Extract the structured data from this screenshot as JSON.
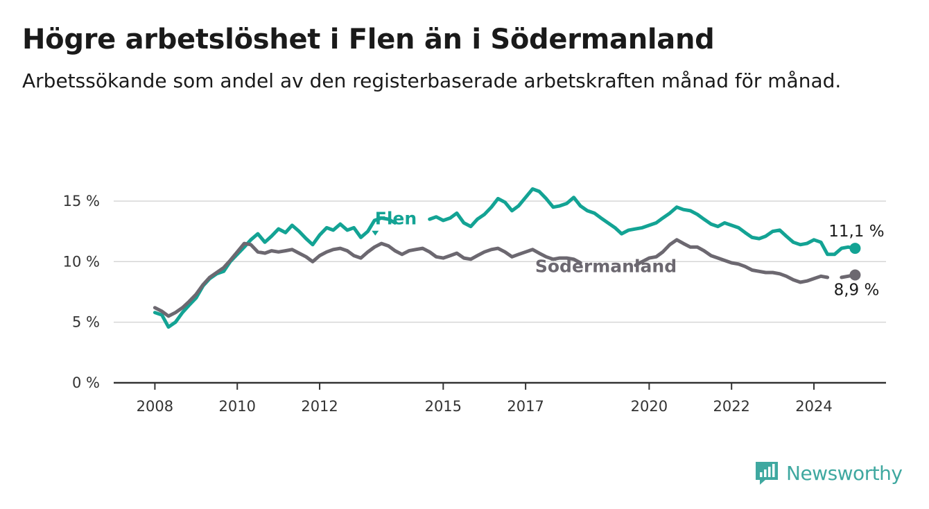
{
  "title": "Högre arbetslöshet i Flen än i Södermanland",
  "subtitle": "Arbetssökande som andel av den registerbaserade arbetskraften månad för månad.",
  "brand": "Newsworthy",
  "chart_data": {
    "type": "line",
    "ylim": [
      0,
      17
    ],
    "yticks": [
      0,
      5,
      10,
      15
    ],
    "ytick_labels": [
      "0 %",
      "5 %",
      "10 %",
      "15 %"
    ],
    "xlim": [
      2007.0,
      2025.75
    ],
    "xticks": [
      2008,
      2010,
      2012,
      2015,
      2017,
      2020,
      2022,
      2024
    ],
    "xtick_labels": [
      "2008",
      "2010",
      "2012",
      "2015",
      "2017",
      "2020",
      "2022",
      "2024"
    ],
    "grid": true,
    "series": [
      {
        "name": "Flen",
        "color": "#13a394",
        "end_label": "11,1 %",
        "points": [
          [
            2008.0,
            5.8
          ],
          [
            2008.17,
            5.6
          ],
          [
            2008.33,
            4.6
          ],
          [
            2008.5,
            5.0
          ],
          [
            2008.67,
            5.8
          ],
          [
            2008.83,
            6.4
          ],
          [
            2009.0,
            7.0
          ],
          [
            2009.17,
            8.0
          ],
          [
            2009.33,
            8.6
          ],
          [
            2009.5,
            9.0
          ],
          [
            2009.67,
            9.2
          ],
          [
            2009.83,
            10.0
          ],
          [
            2010.0,
            10.6
          ],
          [
            2010.17,
            11.2
          ],
          [
            2010.33,
            11.8
          ],
          [
            2010.5,
            12.3
          ],
          [
            2010.67,
            11.6
          ],
          [
            2010.83,
            12.1
          ],
          [
            2011.0,
            12.7
          ],
          [
            2011.17,
            12.4
          ],
          [
            2011.33,
            13.0
          ],
          [
            2011.5,
            12.5
          ],
          [
            2011.67,
            11.9
          ],
          [
            2011.83,
            11.4
          ],
          [
            2012.0,
            12.2
          ],
          [
            2012.17,
            12.8
          ],
          [
            2012.33,
            12.6
          ],
          [
            2012.5,
            13.1
          ],
          [
            2012.67,
            12.6
          ],
          [
            2012.83,
            12.8
          ],
          [
            2013.0,
            12.0
          ],
          [
            2013.17,
            12.5
          ],
          [
            2013.33,
            13.4
          ],
          [
            2013.5,
            13.6
          ],
          [
            2013.67,
            13.5
          ],
          [
            2013.83,
            13.2
          ],
          [
            2014.0,
            null
          ],
          [
            2014.67,
            13.5
          ],
          [
            2014.83,
            13.7
          ],
          [
            2015.0,
            13.4
          ],
          [
            2015.17,
            13.6
          ],
          [
            2015.33,
            14.0
          ],
          [
            2015.5,
            13.2
          ],
          [
            2015.67,
            12.9
          ],
          [
            2015.83,
            13.5
          ],
          [
            2016.0,
            13.9
          ],
          [
            2016.17,
            14.5
          ],
          [
            2016.33,
            15.2
          ],
          [
            2016.5,
            14.9
          ],
          [
            2016.67,
            14.2
          ],
          [
            2016.83,
            14.6
          ],
          [
            2017.0,
            15.3
          ],
          [
            2017.17,
            16.0
          ],
          [
            2017.33,
            15.8
          ],
          [
            2017.5,
            15.2
          ],
          [
            2017.67,
            14.5
          ],
          [
            2017.83,
            14.6
          ],
          [
            2018.0,
            14.8
          ],
          [
            2018.17,
            15.3
          ],
          [
            2018.33,
            14.6
          ],
          [
            2018.5,
            14.2
          ],
          [
            2018.67,
            14.0
          ],
          [
            2018.83,
            13.6
          ],
          [
            2019.0,
            13.2
          ],
          [
            2019.17,
            12.8
          ],
          [
            2019.33,
            12.3
          ],
          [
            2019.5,
            12.6
          ],
          [
            2019.67,
            12.7
          ],
          [
            2019.83,
            12.8
          ],
          [
            2020.0,
            13.0
          ],
          [
            2020.17,
            13.2
          ],
          [
            2020.33,
            13.6
          ],
          [
            2020.5,
            14.0
          ],
          [
            2020.67,
            14.5
          ],
          [
            2020.83,
            14.3
          ],
          [
            2021.0,
            14.2
          ],
          [
            2021.17,
            13.9
          ],
          [
            2021.33,
            13.5
          ],
          [
            2021.5,
            13.1
          ],
          [
            2021.67,
            12.9
          ],
          [
            2021.83,
            13.2
          ],
          [
            2022.0,
            13.0
          ],
          [
            2022.17,
            12.8
          ],
          [
            2022.33,
            12.4
          ],
          [
            2022.5,
            12.0
          ],
          [
            2022.67,
            11.9
          ],
          [
            2022.83,
            12.1
          ],
          [
            2023.0,
            12.5
          ],
          [
            2023.17,
            12.6
          ],
          [
            2023.33,
            12.1
          ],
          [
            2023.5,
            11.6
          ],
          [
            2023.67,
            11.4
          ],
          [
            2023.83,
            11.5
          ],
          [
            2024.0,
            11.8
          ],
          [
            2024.17,
            11.6
          ],
          [
            2024.33,
            10.6
          ],
          [
            2024.5,
            10.6
          ],
          [
            2024.67,
            11.1
          ],
          [
            2024.83,
            11.2
          ],
          [
            2025.0,
            11.1
          ]
        ]
      },
      {
        "name": "Södermanland",
        "color": "#6c6870",
        "end_label": "8,9 %",
        "points": [
          [
            2008.0,
            6.2
          ],
          [
            2008.17,
            5.9
          ],
          [
            2008.33,
            5.5
          ],
          [
            2008.5,
            5.8
          ],
          [
            2008.67,
            6.2
          ],
          [
            2008.83,
            6.7
          ],
          [
            2009.0,
            7.3
          ],
          [
            2009.17,
            8.1
          ],
          [
            2009.33,
            8.7
          ],
          [
            2009.5,
            9.1
          ],
          [
            2009.67,
            9.5
          ],
          [
            2009.83,
            10.1
          ],
          [
            2010.0,
            10.8
          ],
          [
            2010.17,
            11.5
          ],
          [
            2010.33,
            11.4
          ],
          [
            2010.5,
            10.8
          ],
          [
            2010.67,
            10.7
          ],
          [
            2010.83,
            10.9
          ],
          [
            2011.0,
            10.8
          ],
          [
            2011.17,
            10.9
          ],
          [
            2011.33,
            11.0
          ],
          [
            2011.5,
            10.7
          ],
          [
            2011.67,
            10.4
          ],
          [
            2011.83,
            10.0
          ],
          [
            2012.0,
            10.5
          ],
          [
            2012.17,
            10.8
          ],
          [
            2012.33,
            11.0
          ],
          [
            2012.5,
            11.1
          ],
          [
            2012.67,
            10.9
          ],
          [
            2012.83,
            10.5
          ],
          [
            2013.0,
            10.3
          ],
          [
            2013.17,
            10.8
          ],
          [
            2013.33,
            11.2
          ],
          [
            2013.5,
            11.5
          ],
          [
            2013.67,
            11.3
          ],
          [
            2013.83,
            10.9
          ],
          [
            2014.0,
            10.6
          ],
          [
            2014.17,
            10.9
          ],
          [
            2014.33,
            11.0
          ],
          [
            2014.5,
            11.1
          ],
          [
            2014.67,
            10.8
          ],
          [
            2014.83,
            10.4
          ],
          [
            2015.0,
            10.3
          ],
          [
            2015.17,
            10.5
          ],
          [
            2015.33,
            10.7
          ],
          [
            2015.5,
            10.3
          ],
          [
            2015.67,
            10.2
          ],
          [
            2015.83,
            10.5
          ],
          [
            2016.0,
            10.8
          ],
          [
            2016.17,
            11.0
          ],
          [
            2016.33,
            11.1
          ],
          [
            2016.5,
            10.8
          ],
          [
            2016.67,
            10.4
          ],
          [
            2016.83,
            10.6
          ],
          [
            2017.0,
            10.8
          ],
          [
            2017.17,
            11.0
          ],
          [
            2017.33,
            10.7
          ],
          [
            2017.5,
            10.4
          ],
          [
            2017.67,
            10.2
          ],
          [
            2017.83,
            10.3
          ],
          [
            2018.0,
            10.3
          ],
          [
            2018.17,
            10.2
          ],
          [
            2018.33,
            9.9
          ],
          [
            2018.5,
            null
          ],
          [
            2019.67,
            9.7
          ],
          [
            2019.83,
            10.0
          ],
          [
            2020.0,
            10.3
          ],
          [
            2020.17,
            10.4
          ],
          [
            2020.33,
            10.8
          ],
          [
            2020.5,
            11.4
          ],
          [
            2020.67,
            11.8
          ],
          [
            2020.83,
            11.5
          ],
          [
            2021.0,
            11.2
          ],
          [
            2021.17,
            11.2
          ],
          [
            2021.33,
            10.9
          ],
          [
            2021.5,
            10.5
          ],
          [
            2021.67,
            10.3
          ],
          [
            2021.83,
            10.1
          ],
          [
            2022.0,
            9.9
          ],
          [
            2022.17,
            9.8
          ],
          [
            2022.33,
            9.6
          ],
          [
            2022.5,
            9.3
          ],
          [
            2022.67,
            9.2
          ],
          [
            2022.83,
            9.1
          ],
          [
            2023.0,
            9.1
          ],
          [
            2023.17,
            9.0
          ],
          [
            2023.33,
            8.8
          ],
          [
            2023.5,
            8.5
          ],
          [
            2023.67,
            8.3
          ],
          [
            2023.83,
            8.4
          ],
          [
            2024.0,
            8.6
          ],
          [
            2024.17,
            8.8
          ],
          [
            2024.33,
            8.7
          ],
          [
            2024.5,
            null
          ],
          [
            2024.67,
            8.7
          ],
          [
            2024.83,
            8.8
          ],
          [
            2025.0,
            8.9
          ]
        ]
      }
    ]
  }
}
